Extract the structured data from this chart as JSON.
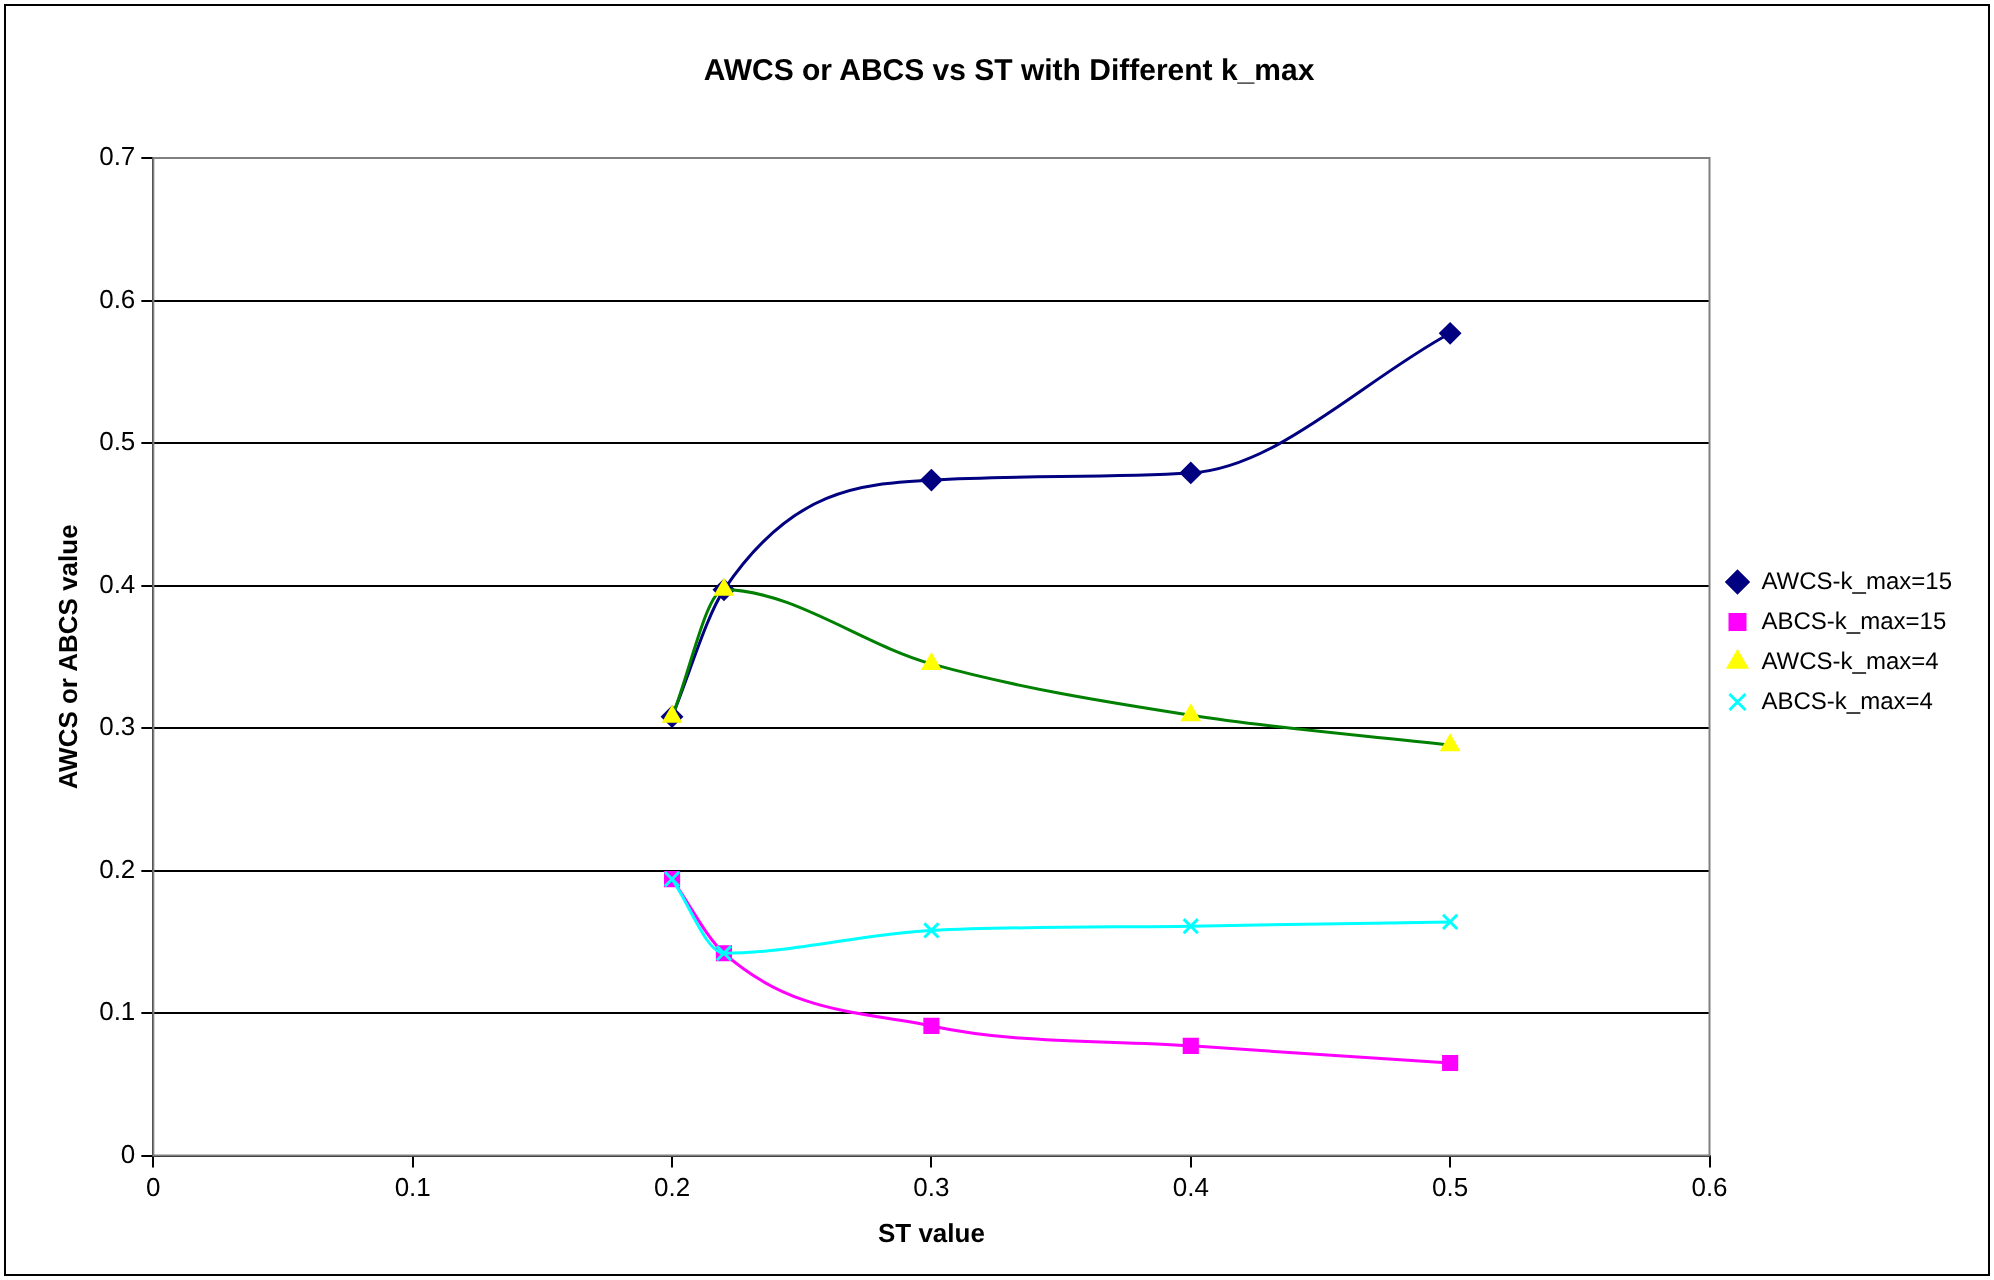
{
  "chart_data": {
    "type": "line",
    "title": "AWCS or ABCS vs ST with Different k_max",
    "xlabel": "ST value",
    "ylabel": "AWCS or ABCS value",
    "x": [
      0.2,
      0.22,
      0.3,
      0.4,
      0.5
    ],
    "xlim": [
      0,
      0.6
    ],
    "xticks": [
      0,
      0.1,
      0.2,
      0.3,
      0.4,
      0.5,
      0.6
    ],
    "ylim": [
      0,
      0.7
    ],
    "yticks": [
      0,
      0.1,
      0.2,
      0.3,
      0.4,
      0.5,
      0.6,
      0.7
    ],
    "grid": "y",
    "legend": "right",
    "series": [
      {
        "name": "AWCS-k_max=15",
        "color": "#000080",
        "marker": "diamond",
        "values": [
          0.308,
          0.397,
          0.474,
          0.479,
          0.577
        ]
      },
      {
        "name": "ABCS-k_max=15",
        "color": "#ff00ff",
        "marker": "square",
        "values": [
          0.194,
          0.142,
          0.091,
          0.077,
          0.065
        ]
      },
      {
        "name": "AWCS-k_max=4",
        "color": "#008000",
        "colors": [
          "#ffff00",
          "#ffff00",
          "#ffff00",
          "#ffff00",
          "#ffff00"
        ],
        "marker": "triangle",
        "values": [
          0.308,
          0.397,
          0.345,
          0.309,
          0.288
        ]
      },
      {
        "name": "ABCS-k_max=4",
        "color": "#00ffff",
        "marker": "cross",
        "values": [
          0.194,
          0.142,
          0.158,
          0.161,
          0.164
        ]
      }
    ]
  }
}
